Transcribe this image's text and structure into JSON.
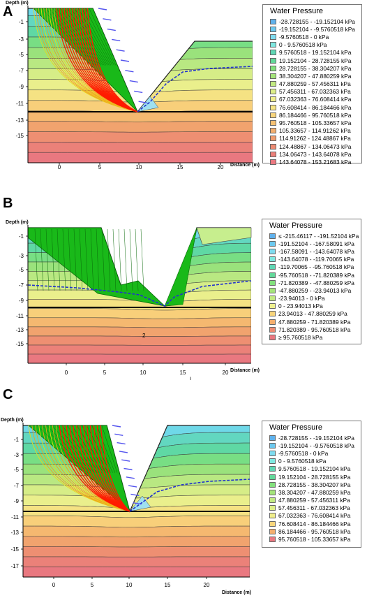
{
  "chart_data": [
    {
      "type": "contour",
      "panel_label": "A",
      "ylabel": "Depth (m)",
      "xlabel": "Distance (m)",
      "x_ticks": [
        "0",
        "5",
        "10",
        "15",
        "20"
      ],
      "y_ticks": [
        "-1",
        "-3",
        "-5",
        "-7",
        "-9",
        "-11",
        "-13",
        "-15"
      ],
      "xlim": [
        -4,
        25
      ],
      "ylim": [
        -18,
        0
      ],
      "legend_title": "Water Pressure",
      "legend": [
        {
          "label": "-28.728155 - -19.152104 kPa",
          "color": "#5fb1ec"
        },
        {
          "label": "-19.152104 - -9.5760518 kPa",
          "color": "#6cc9ef"
        },
        {
          "label": "-9.5760518 - 0 kPa",
          "color": "#7fdcf0"
        },
        {
          "label": "0 - 9.5760518 kPa",
          "color": "#7fe8e0"
        },
        {
          "label": "9.5760518 - 19.152104 kPa",
          "color": "#5fd7b4"
        },
        {
          "label": "19.152104 - 28.728155 kPa",
          "color": "#62d89a"
        },
        {
          "label": "28.728155 - 38.304207 kPa",
          "color": "#82e07c"
        },
        {
          "label": "38.304207 - 47.880259 kPa",
          "color": "#a4e47a"
        },
        {
          "label": "47.880259 - 57.456311 kPa",
          "color": "#c2ea82"
        },
        {
          "label": "57.456311 - 67.032363 kPa",
          "color": "#ddee88"
        },
        {
          "label": "67.032363 - 76.608414 kPa",
          "color": "#f0ee8c"
        },
        {
          "label": "76.608414 - 86.184466 kPa",
          "color": "#f7e585"
        },
        {
          "label": "86.184466 - 95.760518 kPa",
          "color": "#f8d57c"
        },
        {
          "label": "95.760518 - 105.33657 kPa",
          "color": "#f6c173"
        },
        {
          "label": "105.33657 - 114.91262 kPa",
          "color": "#f3ae6e"
        },
        {
          "label": "114.91262 - 124.48867 kPa",
          "color": "#f09c6e"
        },
        {
          "label": "124.48867 - 134.06473 kPa",
          "color": "#ee8b73"
        },
        {
          "label": "134.06473 - 143.64078 kPa",
          "color": "#ec8079"
        },
        {
          "label": "143.64078 - 153.21683 kPa",
          "color": "#ea7880"
        }
      ]
    },
    {
      "type": "contour",
      "panel_label": "B",
      "ylabel": "Depth (m)",
      "xlabel": "Distance (m)",
      "x_ticks": [
        "0",
        "5",
        "10",
        "15",
        "20"
      ],
      "y_ticks": [
        "-1",
        "-3",
        "-5",
        "-7",
        "-9",
        "-11",
        "-13",
        "-15"
      ],
      "xlim": [
        -4,
        24
      ],
      "ylim": [
        -18,
        0
      ],
      "legend_title": "Water Pressure",
      "legend": [
        {
          "label": "≤ -215.46117 - -191.52104 kPa",
          "color": "#5fb1ec"
        },
        {
          "label": "-191.52104 - -167.58091 kPa",
          "color": "#6cc9ef"
        },
        {
          "label": "-167.58091 - -143.64078 kPa",
          "color": "#7fdcf0"
        },
        {
          "label": "-143.64078 - -119.70065 kPa",
          "color": "#7fe8e0"
        },
        {
          "label": "-119.70065 - -95.760518 kPa",
          "color": "#5fd7b4"
        },
        {
          "label": "-95.760518 - -71.820389 kPa",
          "color": "#62d89a"
        },
        {
          "label": "-71.820389 - -47.880259 kPa",
          "color": "#82e07c"
        },
        {
          "label": "-47.880259 - -23.94013 kPa",
          "color": "#a4e47a"
        },
        {
          "label": "-23.94013 - 0 kPa",
          "color": "#c2ea82"
        },
        {
          "label": "0 - 23.94013 kPa",
          "color": "#eef08e"
        },
        {
          "label": "23.94013 - 47.880259 kPa",
          "color": "#f8d57c"
        },
        {
          "label": "47.880259 - 71.820389 kPa",
          "color": "#f3ae6e"
        },
        {
          "label": "71.820389 - 95.760518 kPa",
          "color": "#ee8b73"
        },
        {
          "label": "≥ 95.760518 kPa",
          "color": "#ea7880"
        }
      ],
      "annotations": [
        "2",
        "ı"
      ]
    },
    {
      "type": "contour",
      "panel_label": "C",
      "ylabel": "Depth (m)",
      "xlabel": "Distance (m)",
      "x_ticks": [
        "0",
        "5",
        "10",
        "15",
        "20"
      ],
      "y_ticks": [
        "-1",
        "-3",
        "-5",
        "-7",
        "-9",
        "-11",
        "-13",
        "-15",
        "-17"
      ],
      "xlim": [
        -4,
        24
      ],
      "ylim": [
        -18,
        0
      ],
      "legend_title": "Water Pressure",
      "legend": [
        {
          "label": "-28.728155 - -19.152104 kPa",
          "color": "#5fb1ec"
        },
        {
          "label": "-19.152104 - -9.5760518 kPa",
          "color": "#6cc9ef"
        },
        {
          "label": "-9.5760518 - 0 kPa",
          "color": "#7fdcf0"
        },
        {
          "label": "0 - 9.5760518 kPa",
          "color": "#7fe8e0"
        },
        {
          "label": "9.5760518 - 19.152104 kPa",
          "color": "#5fd7b4"
        },
        {
          "label": "19.152104 - 28.728155 kPa",
          "color": "#62d89a"
        },
        {
          "label": "28.728155 - 38.304207 kPa",
          "color": "#82e07c"
        },
        {
          "label": "38.304207 - 47.880259 kPa",
          "color": "#a4e47a"
        },
        {
          "label": "47.880259 - 57.456311 kPa",
          "color": "#c2ea82"
        },
        {
          "label": "57.456311 - 67.032363 kPa",
          "color": "#ddee88"
        },
        {
          "label": "67.032363 - 76.608414 kPa",
          "color": "#f0ee8c"
        },
        {
          "label": "76.608414 - 86.184466 kPa",
          "color": "#f8d57c"
        },
        {
          "label": "86.184466 - 95.760518 kPa",
          "color": "#f3ae6e"
        },
        {
          "label": "95.760518 - 105.33657 kPa",
          "color": "#ea7880"
        }
      ]
    }
  ],
  "colors": {
    "failure_zone": "#19b919",
    "slip_surface": "#ff1a00",
    "phreatic_line": "#2233cc",
    "ground_line": "#000000",
    "load_arrow": "#5555ee"
  }
}
